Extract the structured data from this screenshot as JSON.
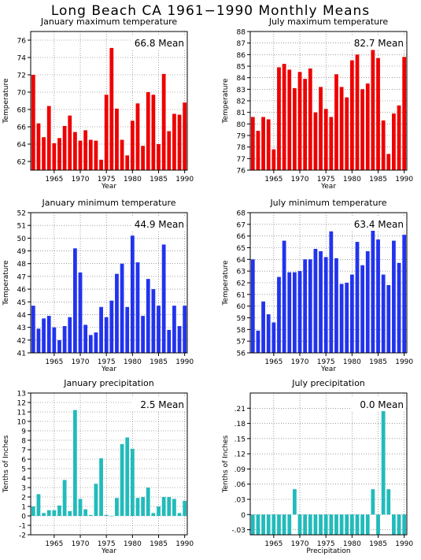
{
  "title": "Long Beach CA  1961−1990 Monthly Means",
  "chart_data": [
    {
      "type": "bar",
      "title": "January maximum temperature",
      "xlabel": "Year",
      "ylabel": "Temperature",
      "mean_label": "66.8  Mean",
      "color": "#ee0000",
      "x": [
        1961,
        1962,
        1963,
        1964,
        1965,
        1966,
        1967,
        1968,
        1969,
        1970,
        1971,
        1972,
        1973,
        1974,
        1975,
        1976,
        1977,
        1978,
        1979,
        1980,
        1981,
        1982,
        1983,
        1984,
        1985,
        1986,
        1987,
        1988,
        1989,
        1990
      ],
      "values": [
        72.0,
        66.4,
        64.8,
        68.4,
        64.1,
        64.7,
        66.1,
        67.3,
        65.4,
        64.4,
        65.6,
        64.5,
        64.4,
        62.2,
        69.7,
        75.1,
        68.1,
        64.5,
        62.7,
        66.7,
        68.7,
        63.8,
        70.0,
        69.7,
        64.0,
        72.1,
        65.5,
        67.5,
        67.4,
        68.8
      ],
      "xlim": [
        1961,
        1990
      ],
      "ylim": [
        61,
        77
      ],
      "yticks": [
        62,
        64,
        66,
        68,
        70,
        72,
        74,
        76
      ],
      "xticks": [
        1965,
        1970,
        1975,
        1980,
        1985,
        1990
      ],
      "grid": true
    },
    {
      "type": "bar",
      "title": "July maximum temperature",
      "xlabel": "Year",
      "ylabel": "Temperature",
      "mean_label": "82.7  Mean",
      "color": "#ee0000",
      "x": [
        1961,
        1962,
        1963,
        1964,
        1965,
        1966,
        1967,
        1968,
        1969,
        1970,
        1971,
        1972,
        1973,
        1974,
        1975,
        1976,
        1977,
        1978,
        1979,
        1980,
        1981,
        1982,
        1983,
        1984,
        1985,
        1986,
        1987,
        1988,
        1989,
        1990
      ],
      "values": [
        80.6,
        79.4,
        80.6,
        80.4,
        77.8,
        84.9,
        85.2,
        84.7,
        83.1,
        84.5,
        83.9,
        84.8,
        81.0,
        83.2,
        81.3,
        80.6,
        84.3,
        83.2,
        82.3,
        85.5,
        86.0,
        83.0,
        83.5,
        86.4,
        85.7,
        80.3,
        77.4,
        80.9,
        81.6,
        85.8
      ],
      "xlim": [
        1961,
        1990
      ],
      "ylim": [
        76,
        88
      ],
      "yticks": [
        76,
        77,
        78,
        79,
        80,
        81,
        82,
        83,
        84,
        85,
        86,
        87,
        88
      ],
      "xticks": [
        1965,
        1970,
        1975,
        1980,
        1985,
        1990
      ],
      "grid": true
    },
    {
      "type": "bar",
      "title": "January minimum temperature",
      "xlabel": "Year",
      "ylabel": "Temperature",
      "mean_label": "44.9  Mean",
      "color": "#2233ee",
      "x": [
        1961,
        1962,
        1963,
        1964,
        1965,
        1966,
        1967,
        1968,
        1969,
        1970,
        1971,
        1972,
        1973,
        1974,
        1975,
        1976,
        1977,
        1978,
        1979,
        1980,
        1981,
        1982,
        1983,
        1984,
        1985,
        1986,
        1987,
        1988,
        1989,
        1990
      ],
      "values": [
        44.7,
        42.9,
        43.7,
        43.9,
        43.0,
        42.0,
        43.1,
        43.8,
        49.2,
        47.3,
        43.2,
        42.4,
        42.6,
        44.6,
        43.8,
        45.1,
        47.2,
        48.0,
        44.6,
        50.2,
        48.1,
        43.9,
        46.8,
        46.0,
        44.7,
        49.5,
        42.8,
        44.7,
        43.1,
        44.7
      ],
      "xlim": [
        1961,
        1990
      ],
      "ylim": [
        41,
        52
      ],
      "yticks": [
        41,
        42,
        43,
        44,
        45,
        46,
        47,
        48,
        49,
        50,
        51,
        52
      ],
      "xticks": [
        1965,
        1970,
        1975,
        1980,
        1985,
        1990
      ],
      "grid": true
    },
    {
      "type": "bar",
      "title": "July minimum temperature",
      "xlabel": "Year",
      "ylabel": "Temperature",
      "mean_label": "63.4  Mean",
      "color": "#2233ee",
      "x": [
        1961,
        1962,
        1963,
        1964,
        1965,
        1966,
        1967,
        1968,
        1969,
        1970,
        1971,
        1972,
        1973,
        1974,
        1975,
        1976,
        1977,
        1978,
        1979,
        1980,
        1981,
        1982,
        1983,
        1984,
        1985,
        1986,
        1987,
        1988,
        1989,
        1990
      ],
      "values": [
        64.0,
        57.9,
        60.4,
        59.3,
        58.6,
        62.5,
        65.6,
        62.9,
        62.9,
        63.0,
        64.0,
        64.0,
        64.9,
        64.7,
        64.2,
        66.4,
        64.1,
        61.9,
        62.0,
        62.7,
        65.5,
        63.5,
        64.7,
        66.8,
        65.7,
        62.7,
        61.8,
        65.6,
        63.7,
        66.1
      ],
      "xlim": [
        1961,
        1990
      ],
      "ylim": [
        56,
        68
      ],
      "yticks": [
        56,
        57,
        58,
        59,
        60,
        61,
        62,
        63,
        64,
        65,
        66,
        67,
        68
      ],
      "xticks": [
        1965,
        1970,
        1975,
        1980,
        1985,
        1990
      ],
      "grid": true
    },
    {
      "type": "bar",
      "title": "January precipitation",
      "xlabel": "Year",
      "ylabel": "Tenths of Inches",
      "mean_label": "2.5  Mean",
      "color": "#22bbbb",
      "x": [
        1961,
        1962,
        1963,
        1964,
        1965,
        1966,
        1967,
        1968,
        1969,
        1970,
        1971,
        1972,
        1973,
        1974,
        1975,
        1976,
        1977,
        1978,
        1979,
        1980,
        1981,
        1982,
        1983,
        1984,
        1985,
        1986,
        1987,
        1988,
        1989,
        1990
      ],
      "values": [
        1.0,
        2.3,
        0.3,
        0.6,
        0.6,
        1.1,
        3.8,
        0.5,
        11.2,
        1.8,
        0.7,
        0.1,
        3.4,
        6.1,
        0.1,
        0.0,
        1.9,
        7.6,
        8.3,
        7.1,
        1.9,
        2.0,
        3.0,
        0.3,
        1.0,
        2.0,
        2.0,
        1.8,
        0.3,
        1.6
      ],
      "xlim": [
        1961,
        1990
      ],
      "ylim": [
        -2,
        13
      ],
      "yticks": [
        -2,
        -1,
        0,
        1,
        2,
        3,
        4,
        5,
        6,
        7,
        8,
        9,
        10,
        11,
        12,
        13
      ],
      "xticks": [
        1965,
        1970,
        1975,
        1980,
        1985,
        1990
      ],
      "grid": true
    },
    {
      "type": "bar",
      "title": "July precipitation",
      "xlabel": "Precipitation",
      "ylabel": "Tenths of Inches",
      "mean_label": "0.0  Mean",
      "color": "#22bbbb",
      "x": [
        1961,
        1962,
        1963,
        1964,
        1965,
        1966,
        1967,
        1968,
        1969,
        1970,
        1971,
        1972,
        1973,
        1974,
        1975,
        1976,
        1977,
        1978,
        1979,
        1980,
        1981,
        1982,
        1983,
        1984,
        1985,
        1986,
        1987,
        1988,
        1989,
        1990
      ],
      "values": [
        -0.04,
        -0.04,
        -0.04,
        -0.04,
        -0.04,
        -0.04,
        -0.04,
        -0.04,
        0.05,
        -0.04,
        -0.04,
        -0.04,
        -0.04,
        -0.04,
        -0.04,
        -0.04,
        -0.04,
        -0.04,
        -0.04,
        -0.04,
        -0.04,
        -0.04,
        -0.04,
        0.05,
        -0.04,
        0.21,
        0.05,
        -0.04,
        -0.04,
        -0.04
      ],
      "xlim": [
        1961,
        1990
      ],
      "ylim": [
        -0.04,
        0.24
      ],
      "yticks": [
        -0.03,
        0,
        0.03,
        0.06,
        0.09,
        0.12,
        0.15,
        0.18,
        0.21
      ],
      "xticks": [
        1965,
        1970,
        1975,
        1980,
        1985,
        1990
      ],
      "grid": true
    }
  ]
}
